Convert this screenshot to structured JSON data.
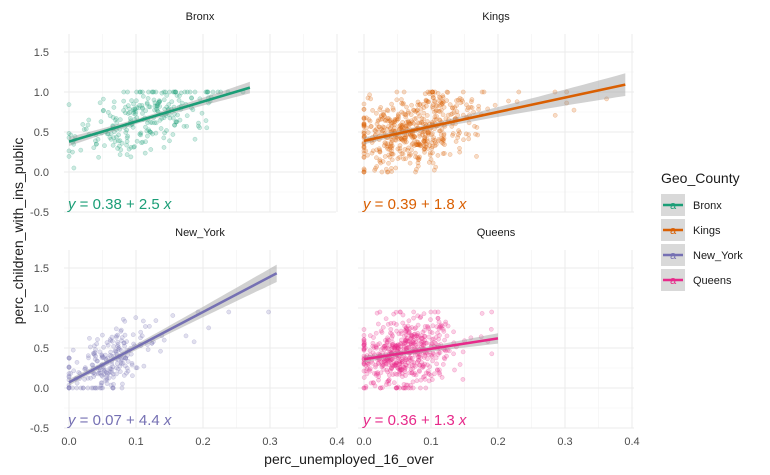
{
  "chart_data": {
    "type": "scatter",
    "xlabel": "perc_unemployed_16_over",
    "ylabel": "perc_children_with_ins_public",
    "xlim": [
      0,
      0.4
    ],
    "ylim": [
      -0.5,
      1.75
    ],
    "x_ticks": [
      "0.0",
      "0.1",
      "0.2",
      "0.3",
      "0.4"
    ],
    "y_ticks": [
      "-0.5",
      "0.0",
      "0.5",
      "1.0",
      "1.5"
    ],
    "grid": true,
    "legend": {
      "title": "Geo_County",
      "position": "right",
      "items": [
        {
          "label": "Bronx",
          "color": "#1b9e77"
        },
        {
          "label": "Kings",
          "color": "#d95f02"
        },
        {
          "label": "New_York",
          "color": "#7570b3"
        },
        {
          "label": "Queens",
          "color": "#e7298a"
        }
      ]
    },
    "panels": [
      {
        "name": "Bronx",
        "color": "#1b9e77",
        "intercept": 0.38,
        "slope": 2.5,
        "x_range": [
          0.0,
          0.27
        ],
        "equation": {
          "prefix": "y",
          "body": " = 0.38 + 2.5 ",
          "suffix": "x"
        },
        "points": {
          "n": 260,
          "x_center": 0.11,
          "x_sd": 0.05,
          "x_min": 0.0,
          "x_max": 0.27,
          "y_sd": 0.2,
          "y_min": 0.05,
          "y_max": 1.0
        }
      },
      {
        "name": "Kings",
        "color": "#d95f02",
        "intercept": 0.39,
        "slope": 1.8,
        "x_range": [
          0.0,
          0.39
        ],
        "equation": {
          "prefix": "y",
          "body": " = 0.39 + 1.8 ",
          "suffix": "x"
        },
        "points": {
          "n": 560,
          "x_center": 0.07,
          "x_sd": 0.045,
          "x_min": 0.0,
          "x_max": 0.39,
          "y_sd": 0.22,
          "y_min": 0.0,
          "y_max": 1.0
        }
      },
      {
        "name": "New_York",
        "color": "#7570b3",
        "intercept": 0.07,
        "slope": 4.4,
        "x_range": [
          0.0,
          0.31
        ],
        "equation": {
          "prefix": "y",
          "body": " = 0.07 + 4.4 ",
          "suffix": "x"
        },
        "points": {
          "n": 230,
          "x_center": 0.06,
          "x_sd": 0.035,
          "x_min": 0.0,
          "x_max": 0.31,
          "y_sd": 0.18,
          "y_min": 0.0,
          "y_max": 0.95
        }
      },
      {
        "name": "Queens",
        "color": "#e7298a",
        "intercept": 0.36,
        "slope": 1.3,
        "x_range": [
          0.0,
          0.2
        ],
        "equation": {
          "prefix": "y",
          "body": " = 0.36 + 1.3 ",
          "suffix": "x"
        },
        "points": {
          "n": 560,
          "x_center": 0.06,
          "x_sd": 0.035,
          "x_min": 0.0,
          "x_max": 0.2,
          "y_sd": 0.22,
          "y_min": 0.0,
          "y_max": 0.95
        }
      }
    ]
  }
}
